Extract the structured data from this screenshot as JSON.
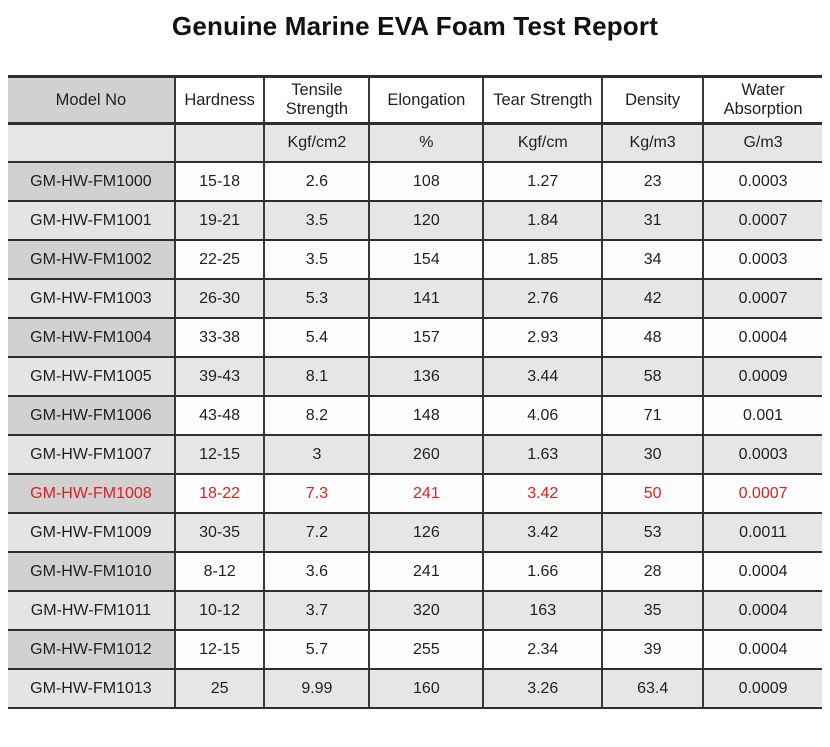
{
  "title": "Genuine Marine EVA Foam Test Report",
  "colors": {
    "highlight_text": "#d8231e",
    "model_column_dark": "#d1d1d1",
    "stripe_light_gray": "#e6e6e6",
    "border": "#2e2e2e"
  },
  "table": {
    "columns": [
      "Model No",
      "Hardness",
      "Tensile Strength",
      "Elongation",
      "Tear Strength",
      "Density",
      "Water Absorption"
    ],
    "units": [
      "",
      "",
      "Kgf/cm2",
      "%",
      "Kgf/cm",
      "Kg/m3",
      "G/m3"
    ],
    "rows": [
      {
        "model": "GM-HW-FM1000",
        "hardness": "15-18",
        "tensile": "2.6",
        "elongation": "108",
        "tear": "1.27",
        "density": "23",
        "water": "0.0003",
        "highlight": false
      },
      {
        "model": "GM-HW-FM1001",
        "hardness": "19-21",
        "tensile": "3.5",
        "elongation": "120",
        "tear": "1.84",
        "density": "31",
        "water": "0.0007",
        "highlight": false
      },
      {
        "model": "GM-HW-FM1002",
        "hardness": "22-25",
        "tensile": "3.5",
        "elongation": "154",
        "tear": "1.85",
        "density": "34",
        "water": "0.0003",
        "highlight": false
      },
      {
        "model": "GM-HW-FM1003",
        "hardness": "26-30",
        "tensile": "5.3",
        "elongation": "141",
        "tear": "2.76",
        "density": "42",
        "water": "0.0007",
        "highlight": false
      },
      {
        "model": "GM-HW-FM1004",
        "hardness": "33-38",
        "tensile": "5.4",
        "elongation": "157",
        "tear": "2.93",
        "density": "48",
        "water": "0.0004",
        "highlight": false
      },
      {
        "model": "GM-HW-FM1005",
        "hardness": "39-43",
        "tensile": "8.1",
        "elongation": "136",
        "tear": "3.44",
        "density": "58",
        "water": "0.0009",
        "highlight": false
      },
      {
        "model": "GM-HW-FM1006",
        "hardness": "43-48",
        "tensile": "8.2",
        "elongation": "148",
        "tear": "4.06",
        "density": "71",
        "water": "0.001",
        "highlight": false
      },
      {
        "model": "GM-HW-FM1007",
        "hardness": "12-15",
        "tensile": "3",
        "elongation": "260",
        "tear": "1.63",
        "density": "30",
        "water": "0.0003",
        "highlight": false
      },
      {
        "model": "GM-HW-FM1008",
        "hardness": "18-22",
        "tensile": "7.3",
        "elongation": "241",
        "tear": "3.42",
        "density": "50",
        "water": "0.0007",
        "highlight": true
      },
      {
        "model": "GM-HW-FM1009",
        "hardness": "30-35",
        "tensile": "7.2",
        "elongation": "126",
        "tear": "3.42",
        "density": "53",
        "water": "0.0011",
        "highlight": false
      },
      {
        "model": "GM-HW-FM1010",
        "hardness": "8-12",
        "tensile": "3.6",
        "elongation": "241",
        "tear": "1.66",
        "density": "28",
        "water": "0.0004",
        "highlight": false
      },
      {
        "model": "GM-HW-FM1011",
        "hardness": "10-12",
        "tensile": "3.7",
        "elongation": "320",
        "tear": "163",
        "density": "35",
        "water": "0.0004",
        "highlight": false
      },
      {
        "model": "GM-HW-FM1012",
        "hardness": "12-15",
        "tensile": "5.7",
        "elongation": "255",
        "tear": "2.34",
        "density": "39",
        "water": "0.0004",
        "highlight": false
      },
      {
        "model": "GM-HW-FM1013",
        "hardness": "25",
        "tensile": "9.99",
        "elongation": "160",
        "tear": "3.26",
        "density": "63.4",
        "water": "0.0009",
        "highlight": false
      }
    ]
  }
}
